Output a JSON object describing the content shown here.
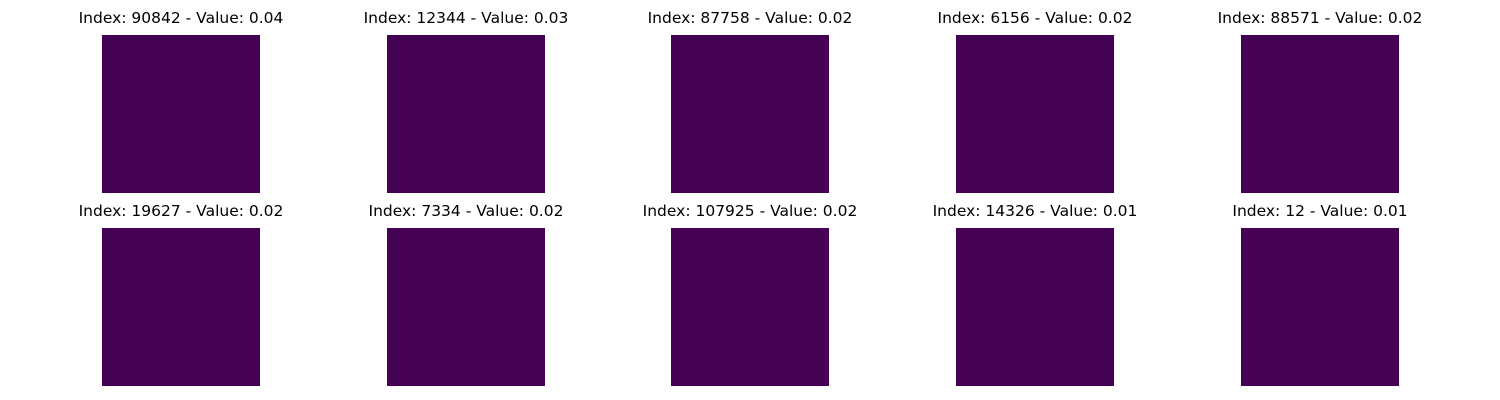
{
  "chart_data": {
    "type": "image-grid",
    "layout": {
      "rows": 2,
      "cols": 5
    },
    "colormap": {
      "background": "#440154",
      "edge_dark": "#31688e",
      "edge_mid": "#21918c",
      "edge_light": "#5ec962",
      "core": "#fde725"
    },
    "panels": [
      {
        "title": "Index: 90842 - Value: 0.04",
        "index": 90842,
        "value": 0.04,
        "glyph": "glyph-a"
      },
      {
        "title": "Index: 12344 - Value: 0.03",
        "index": 12344,
        "value": 0.03,
        "glyph": "glyph-b"
      },
      {
        "title": "Index: 87758 - Value: 0.02",
        "index": 87758,
        "value": 0.02,
        "glyph": "glyph-c"
      },
      {
        "title": "Index: 6156 - Value: 0.02",
        "index": 6156,
        "value": 0.02,
        "glyph": "glyph-d"
      },
      {
        "title": "Index: 88571 - Value: 0.02",
        "index": 88571,
        "value": 0.02,
        "glyph": "glyph-e"
      },
      {
        "title": "Index: 19627 - Value: 0.02",
        "index": 19627,
        "value": 0.02,
        "glyph": "glyph-f"
      },
      {
        "title": "Index: 7334 - Value: 0.02",
        "index": 7334,
        "value": 0.02,
        "glyph": "glyph-g"
      },
      {
        "title": "Index: 107925 - Value: 0.02",
        "index": 107925,
        "value": 0.02,
        "glyph": "glyph-h"
      },
      {
        "title": "Index: 14326 - Value: 0.01",
        "index": 14326,
        "value": 0.01,
        "glyph": "glyph-i"
      },
      {
        "title": "Index: 12 - Value: 0.01",
        "index": 12,
        "value": 0.01,
        "glyph": "glyph-j"
      }
    ]
  }
}
